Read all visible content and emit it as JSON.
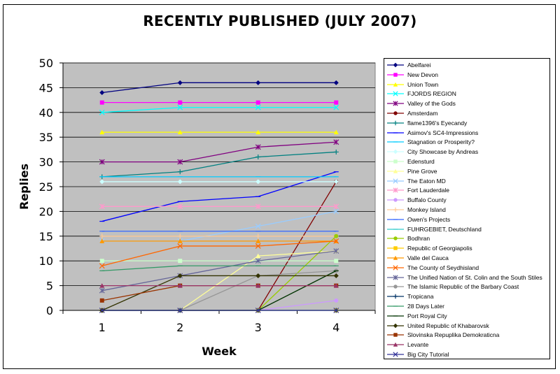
{
  "chart_data": {
    "type": "line",
    "title": "RECENTLY PUBLISHED (JULY 2007)",
    "xlabel": "Week",
    "ylabel": "Replies",
    "x": [
      1,
      2,
      3,
      4
    ],
    "ylim": [
      0,
      50
    ],
    "yticks": [
      0,
      5,
      10,
      15,
      20,
      25,
      30,
      35,
      40,
      45,
      50
    ],
    "grid": true,
    "plot_background": "#c0c0c0",
    "legend_position": "right",
    "series": [
      {
        "name": "Abelfarei",
        "values": [
          44,
          46,
          46,
          46
        ],
        "color": "#000080",
        "marker": "diamond"
      },
      {
        "name": "New Devon",
        "values": [
          42,
          42,
          42,
          42
        ],
        "color": "#ff00ff",
        "marker": "square"
      },
      {
        "name": "Union Town",
        "values": [
          36,
          36,
          36,
          36
        ],
        "color": "#ffff00",
        "marker": "triangle"
      },
      {
        "name": "FJORDS REGION",
        "values": [
          40,
          41,
          41,
          41
        ],
        "color": "#00ffff",
        "marker": "x"
      },
      {
        "name": "Valley of the Gods",
        "values": [
          30,
          30,
          33,
          34
        ],
        "color": "#800080",
        "marker": "star"
      },
      {
        "name": "Amsterdam",
        "values": [
          0,
          0,
          0,
          26
        ],
        "color": "#800000",
        "marker": "circle"
      },
      {
        "name": "flame1396's Eyecandy",
        "values": [
          27,
          28,
          31,
          32
        ],
        "color": "#008080",
        "marker": "plus"
      },
      {
        "name": "Asimov's SC4-Impressions",
        "values": [
          18,
          22,
          23,
          28
        ],
        "color": "#0000ff",
        "marker": "dash"
      },
      {
        "name": "Stagnation or Prosperity?",
        "values": [
          27,
          27,
          27,
          27
        ],
        "color": "#00ccff",
        "marker": "dash"
      },
      {
        "name": "City Showcase by Andreas",
        "values": [
          26,
          26,
          26,
          26
        ],
        "color": "#ccffff",
        "marker": "diamond"
      },
      {
        "name": "Edensturd",
        "values": [
          10,
          10,
          10,
          10
        ],
        "color": "#ccffcc",
        "marker": "square"
      },
      {
        "name": "Pine Grove",
        "values": [
          0,
          0,
          11,
          12
        ],
        "color": "#ffff99",
        "marker": "triangle"
      },
      {
        "name": "The Eaton MD",
        "values": [
          14,
          14,
          17,
          20
        ],
        "color": "#99ccff",
        "marker": "x"
      },
      {
        "name": "Fort Lauderdale",
        "values": [
          21,
          21,
          21,
          21
        ],
        "color": "#ff99cc",
        "marker": "star"
      },
      {
        "name": "Buffalo County",
        "values": [
          0,
          0,
          0,
          2
        ],
        "color": "#cc99ff",
        "marker": "circle"
      },
      {
        "name": "Monkey Island",
        "values": [
          15,
          15,
          15,
          15
        ],
        "color": "#ffcc99",
        "marker": "plus"
      },
      {
        "name": "Owen's Projects",
        "values": [
          16,
          16,
          16,
          16
        ],
        "color": "#3366ff",
        "marker": "dash"
      },
      {
        "name": "FUHRGEBIET, Deutschland",
        "values": [
          0,
          0,
          0,
          0
        ],
        "color": "#33cccc",
        "marker": "dash"
      },
      {
        "name": "Bodhran",
        "values": [
          0,
          0,
          0,
          15
        ],
        "color": "#99cc00",
        "marker": "circle"
      },
      {
        "name": "Republic of Georgiapolis",
        "values": [
          0,
          0,
          0,
          0
        ],
        "color": "#ffcc00",
        "marker": "square"
      },
      {
        "name": "Valle del Cauca",
        "values": [
          14,
          14,
          14,
          14
        ],
        "color": "#ff9900",
        "marker": "triangle"
      },
      {
        "name": "The County of Seydhisland",
        "values": [
          9,
          13,
          13,
          14
        ],
        "color": "#ff6600",
        "marker": "x"
      },
      {
        "name": "The Unified Nation of St. Colin and the South Stiles",
        "values": [
          4,
          7,
          10,
          12
        ],
        "color": "#666699",
        "marker": "star"
      },
      {
        "name": "The Islamic Republic of the Barbary Coast",
        "values": [
          0,
          0,
          7,
          8
        ],
        "color": "#969696",
        "marker": "circle"
      },
      {
        "name": "Tropicana",
        "values": [
          0,
          0,
          0,
          0
        ],
        "color": "#003366",
        "marker": "plus"
      },
      {
        "name": "28 Days Later",
        "values": [
          8,
          9,
          9,
          9
        ],
        "color": "#339966",
        "marker": "dash"
      },
      {
        "name": "Port Royal City",
        "values": [
          0,
          0,
          0,
          8
        ],
        "color": "#003300",
        "marker": "dash"
      },
      {
        "name": "United Republic of Khabarovsk",
        "values": [
          0,
          7,
          7,
          7
        ],
        "color": "#333300",
        "marker": "diamond"
      },
      {
        "name": "Slovinska Repuplika Demokraticna",
        "values": [
          2,
          5,
          5,
          5
        ],
        "color": "#993300",
        "marker": "square"
      },
      {
        "name": "Levante",
        "values": [
          5,
          5,
          5,
          5
        ],
        "color": "#993366",
        "marker": "triangle"
      },
      {
        "name": "Big City Tutorial",
        "values": [
          0,
          0,
          0,
          0
        ],
        "color": "#333399",
        "marker": "x"
      }
    ]
  }
}
